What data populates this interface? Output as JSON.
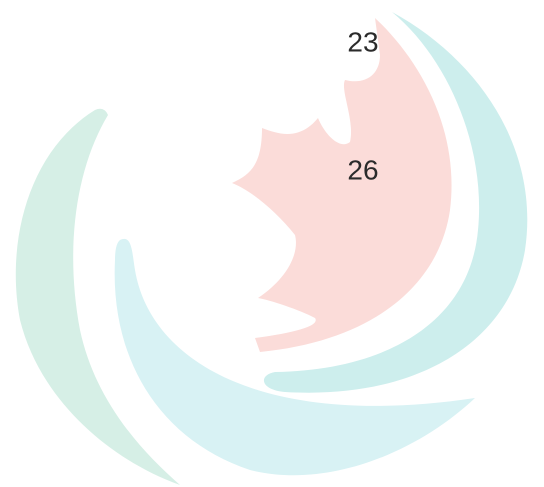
{
  "labels": [
    "23",
    "26"
  ]
}
